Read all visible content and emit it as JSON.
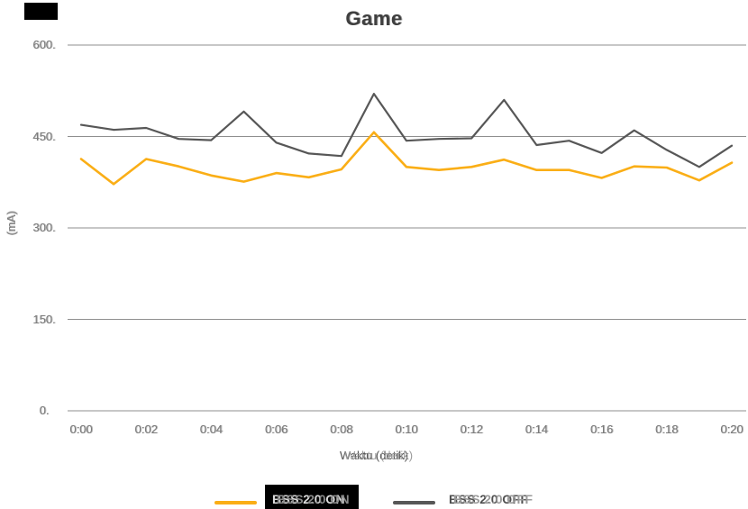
{
  "title": "Game",
  "colors": {
    "series_on": "#FAAE16",
    "series_off": "#575757",
    "gridline": "#8f8f8f",
    "tick_text": "#7a7a7a",
    "title_text": "#3f3f3f",
    "artifact_box": "#000000"
  },
  "axes": {
    "y_title": "(mA)",
    "x_title": "Waktu (detik)"
  },
  "legend": {
    "items": [
      {
        "label": "BSS 2.0 ON",
        "color": "#FAAE16"
      },
      {
        "label": "BSS 2.0 OFF",
        "color": "#575757"
      }
    ]
  },
  "chart_data": {
    "type": "line",
    "title": "Game",
    "xlabel": "Waktu (detik)",
    "ylabel": "(mA)",
    "ylim": [
      0,
      600
    ],
    "grid": true,
    "legend_position": "bottom",
    "ytick_labels": [
      "600.",
      "450.",
      "300.",
      "150.",
      "0."
    ],
    "xtick_labels": [
      "0:00",
      "0:02",
      "0:04",
      "0:06",
      "0:08",
      "0:10",
      "0:12",
      "0:14",
      "0:16",
      "0:18",
      "0:20"
    ],
    "x": [
      "0:00",
      "0:01",
      "0:02",
      "0:03",
      "0:04",
      "0:05",
      "0:06",
      "0:07",
      "0:08",
      "0:09",
      "0:10",
      "0:11",
      "0:12",
      "0:13",
      "0:14",
      "0:15",
      "0:16",
      "0:17",
      "0:18",
      "0:19",
      "0:20"
    ],
    "series": [
      {
        "name": "BSS 2.0 ON",
        "color": "#FAAE16",
        "values": [
          413,
          372,
          413,
          401,
          386,
          376,
          390,
          383,
          396,
          457,
          400,
          395,
          400,
          412,
          395,
          395,
          382,
          401,
          399,
          378,
          407
        ]
      },
      {
        "name": "BSS 2.0 OFF",
        "color": "#575757",
        "values": [
          469,
          461,
          464,
          446,
          444,
          491,
          440,
          422,
          418,
          520,
          443,
          446,
          447,
          510,
          436,
          443,
          423,
          460,
          428,
          400,
          435
        ]
      }
    ]
  }
}
